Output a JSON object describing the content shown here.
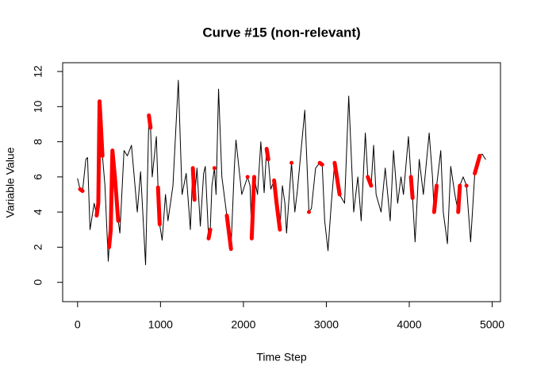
{
  "chart_data": {
    "type": "line",
    "title": "Curve #15 (non-relevant)",
    "x_label": "Time Step",
    "y_label": "Variable Value",
    "x": [
      0,
      30,
      60,
      100,
      120,
      150,
      200,
      230,
      250,
      265,
      280,
      300,
      330,
      370,
      380,
      400,
      420,
      450,
      490,
      510,
      560,
      600,
      650,
      720,
      760,
      820,
      860,
      880,
      900,
      950,
      970,
      990,
      1020,
      1060,
      1090,
      1150,
      1215,
      1260,
      1310,
      1360,
      1390,
      1410,
      1440,
      1480,
      1520,
      1540,
      1580,
      1600,
      1620,
      1650,
      1670,
      1700,
      1740,
      1800,
      1850,
      1890,
      1910,
      1980,
      2050,
      2080,
      2100,
      2130,
      2170,
      2210,
      2250,
      2280,
      2300,
      2330,
      2370,
      2400,
      2440,
      2470,
      2500,
      2520,
      2580,
      2620,
      2650,
      2740,
      2790,
      2820,
      2870,
      2920,
      2950,
      2980,
      3020,
      3060,
      3100,
      3160,
      3220,
      3270,
      3330,
      3380,
      3420,
      3470,
      3500,
      3540,
      3570,
      3600,
      3660,
      3710,
      3770,
      3810,
      3860,
      3900,
      3930,
      3990,
      4020,
      4040,
      4070,
      4120,
      4170,
      4240,
      4280,
      4300,
      4330,
      4380,
      4410,
      4460,
      4500,
      4550,
      4590,
      4610,
      4650,
      4690,
      4740,
      4790,
      4850,
      4880,
      4920
    ],
    "series": [
      {
        "color": "#000000",
        "values": [
          5.9,
          5.3,
          5.2,
          7.0,
          7.1,
          3.0,
          4.5,
          3.8,
          4.5,
          10.3,
          9.0,
          7.2,
          5.5,
          1.2,
          2.0,
          3.0,
          7.5,
          6.0,
          3.5,
          2.8,
          7.5,
          7.2,
          7.8,
          4.0,
          6.3,
          1.0,
          9.5,
          8.8,
          6.0,
          8.3,
          5.4,
          3.3,
          2.4,
          5.0,
          3.5,
          5.5,
          11.5,
          5.0,
          6.2,
          3.0,
          6.5,
          4.7,
          6.5,
          3.2,
          6.2,
          6.6,
          2.5,
          3.0,
          5.5,
          6.5,
          5.0,
          11.0,
          6.0,
          3.8,
          1.9,
          6.5,
          8.1,
          5.0,
          6.0,
          5.5,
          2.5,
          6.0,
          5.0,
          8.0,
          5.1,
          7.6,
          7.0,
          5.3,
          5.8,
          4.5,
          3.0,
          5.5,
          4.5,
          2.8,
          6.8,
          4.0,
          5.2,
          9.8,
          4.0,
          4.2,
          6.5,
          6.8,
          6.7,
          3.5,
          1.8,
          4.5,
          6.8,
          5.0,
          4.5,
          10.6,
          4.0,
          6.0,
          3.5,
          8.5,
          6.0,
          5.5,
          7.8,
          5.0,
          4.0,
          6.5,
          3.5,
          7.5,
          4.5,
          6.0,
          5.0,
          8.3,
          6.0,
          4.8,
          2.3,
          7.0,
          5.0,
          8.5,
          6.0,
          4.0,
          5.5,
          7.5,
          4.0,
          2.2,
          6.6,
          5.0,
          4.0,
          5.5,
          6.0,
          5.5,
          2.3,
          6.2,
          7.2,
          7.3,
          7.0
        ]
      },
      {
        "color": "#ff0000",
        "values": [
          null,
          5.3,
          5.2,
          null,
          null,
          null,
          null,
          3.8,
          4.5,
          10.3,
          9.0,
          7.2,
          null,
          null,
          2.0,
          3.0,
          7.5,
          6.0,
          3.5,
          null,
          null,
          null,
          null,
          null,
          null,
          null,
          9.5,
          8.8,
          null,
          null,
          5.4,
          3.3,
          null,
          null,
          null,
          null,
          null,
          null,
          null,
          null,
          6.5,
          4.7,
          null,
          null,
          null,
          null,
          2.5,
          3.0,
          null,
          6.5,
          null,
          null,
          null,
          3.8,
          1.9,
          null,
          null,
          null,
          6.0,
          null,
          2.5,
          6.0,
          null,
          null,
          null,
          7.6,
          7.0,
          null,
          5.8,
          4.5,
          3.0,
          null,
          null,
          null,
          6.8,
          null,
          null,
          null,
          4.0,
          null,
          null,
          6.8,
          6.7,
          null,
          null,
          null,
          6.8,
          5.0,
          null,
          null,
          null,
          null,
          null,
          null,
          6.0,
          5.5,
          null,
          null,
          null,
          null,
          null,
          null,
          null,
          null,
          null,
          null,
          6.0,
          4.8,
          null,
          null,
          null,
          null,
          null,
          4.0,
          5.5,
          null,
          null,
          null,
          null,
          null,
          4.0,
          5.5,
          null,
          5.5,
          null,
          6.2,
          7.2,
          null,
          null
        ]
      }
    ],
    "xlim": [
      -180,
      5100
    ],
    "ylim": [
      -1.1,
      12.5
    ],
    "xticks": [
      0,
      1000,
      2000,
      3000,
      4000,
      5000
    ],
    "yticks": [
      0,
      2,
      4,
      6,
      8,
      10,
      12
    ]
  }
}
